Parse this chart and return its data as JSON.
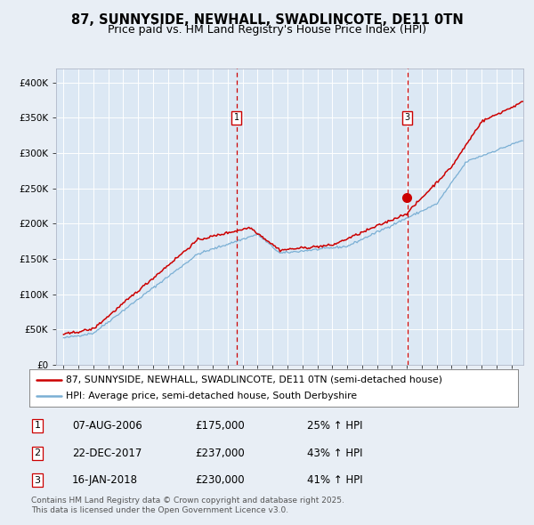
{
  "title": "87, SUNNYSIDE, NEWHALL, SWADLINCOTE, DE11 0TN",
  "subtitle": "Price paid vs. HM Land Registry's House Price Index (HPI)",
  "background_color": "#e8eef5",
  "plot_bg_color": "#dce8f4",
  "grid_color": "#c8d8e8",
  "red_line_color": "#cc0000",
  "blue_line_color": "#7aafd4",
  "ylim": [
    0,
    420000
  ],
  "yticks": [
    0,
    50000,
    100000,
    150000,
    200000,
    250000,
    300000,
    350000,
    400000
  ],
  "ytick_labels": [
    "£0",
    "£50K",
    "£100K",
    "£150K",
    "£200K",
    "£250K",
    "£300K",
    "£350K",
    "£400K"
  ],
  "xlim_start": 1994.5,
  "xlim_end": 2025.8,
  "xticks": [
    1995,
    1996,
    1997,
    1998,
    1999,
    2000,
    2001,
    2002,
    2003,
    2004,
    2005,
    2006,
    2007,
    2008,
    2009,
    2010,
    2011,
    2012,
    2013,
    2014,
    2015,
    2016,
    2017,
    2018,
    2019,
    2020,
    2021,
    2022,
    2023,
    2024,
    2025
  ],
  "vline1_x": 2006.6,
  "vline2_x": 2018.04,
  "marker1_x": 2006.6,
  "marker1_y": 350000,
  "marker1_label": "1",
  "marker2_x": 2017.97,
  "marker2_y": 237000,
  "marker3_x": 2018.04,
  "marker3_y": 350000,
  "marker3_label": "3",
  "dot2_color": "#cc0000",
  "legend_red_label": "87, SUNNYSIDE, NEWHALL, SWADLINCOTE, DE11 0TN (semi-detached house)",
  "legend_blue_label": "HPI: Average price, semi-detached house, South Derbyshire",
  "table_data": [
    [
      "1",
      "07-AUG-2006",
      "£175,000",
      "25% ↑ HPI"
    ],
    [
      "2",
      "22-DEC-2017",
      "£237,000",
      "43% ↑ HPI"
    ],
    [
      "3",
      "16-JAN-2018",
      "£230,000",
      "41% ↑ HPI"
    ]
  ],
  "footer_text": "Contains HM Land Registry data © Crown copyright and database right 2025.\nThis data is licensed under the Open Government Licence v3.0.",
  "title_fontsize": 10.5,
  "subtitle_fontsize": 9,
  "tick_fontsize": 7.5,
  "legend_fontsize": 7.8,
  "table_fontsize": 8.5,
  "footer_fontsize": 6.5
}
